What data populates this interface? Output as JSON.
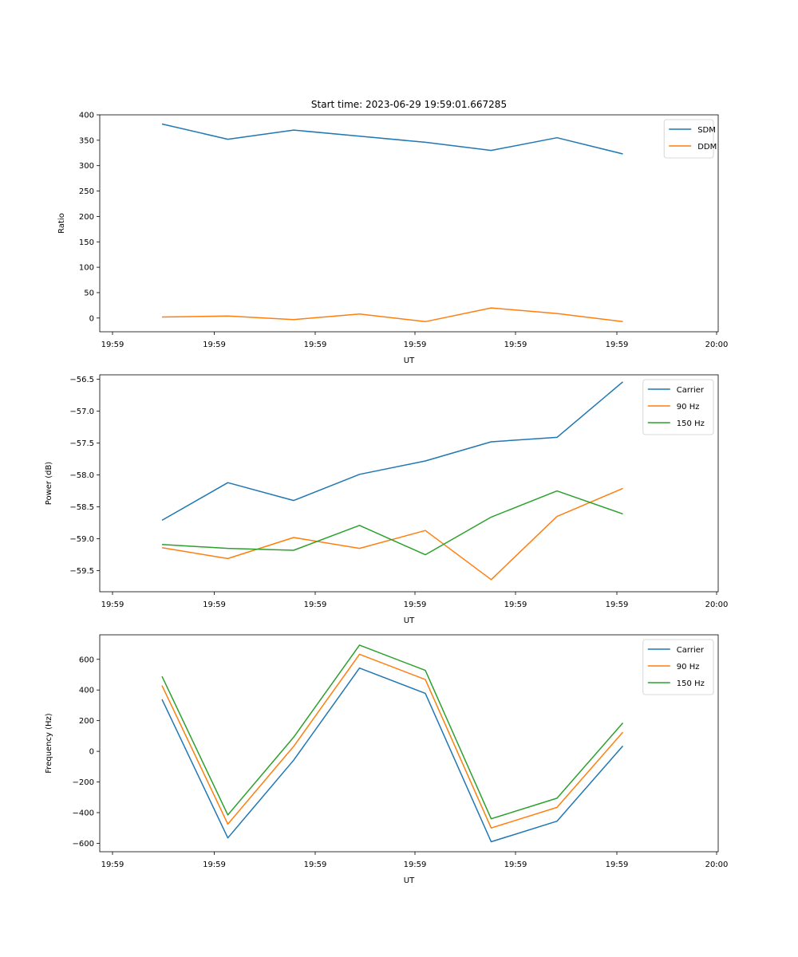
{
  "chart_data": [
    {
      "type": "line",
      "title": "Start time: 2023-06-29 19:59:01.667285",
      "xlabel": "UT",
      "ylabel": "Ratio",
      "ylim": [
        -27,
        400
      ],
      "yticks": [
        0,
        50,
        100,
        150,
        200,
        250,
        300,
        350,
        400
      ],
      "ytick_labels": [
        "0",
        "50",
        "100",
        "150",
        "200",
        "250",
        "300",
        "350",
        "400"
      ],
      "xtick_labels": [
        "19:59",
        "19:59",
        "19:59",
        "19:59",
        "19:59",
        "19:59",
        "20:00"
      ],
      "legend_position": "top-right",
      "grid": false,
      "series": [
        {
          "name": "SDM",
          "color": "#1f77b4",
          "values": [
            382,
            352,
            370,
            358,
            346,
            330,
            355,
            323
          ]
        },
        {
          "name": "DDM",
          "color": "#ff7f0e",
          "values": [
            2,
            4,
            -3,
            8,
            -7,
            20,
            9,
            -7
          ]
        }
      ]
    },
    {
      "type": "line",
      "title": "",
      "xlabel": "UT",
      "ylabel": "Power (dB)",
      "ylim": [
        -59.83,
        -56.43
      ],
      "yticks": [
        -59.5,
        -59.0,
        -58.5,
        -58.0,
        -57.5,
        -57.0,
        -56.5
      ],
      "ytick_labels": [
        "−59.5",
        "−59.0",
        "−58.5",
        "−58.0",
        "−57.5",
        "−57.0",
        "−56.5"
      ],
      "xtick_labels": [
        "19:59",
        "19:59",
        "19:59",
        "19:59",
        "19:59",
        "19:59",
        "20:00"
      ],
      "legend_position": "top-right",
      "grid": false,
      "series": [
        {
          "name": "Carrier",
          "color": "#1f77b4",
          "values": [
            -58.71,
            -58.12,
            -58.4,
            -57.99,
            -57.78,
            -57.48,
            -57.41,
            -56.54
          ]
        },
        {
          "name": "90 Hz",
          "color": "#ff7f0e",
          "values": [
            -59.14,
            -59.31,
            -58.98,
            -59.15,
            -58.87,
            -59.64,
            -58.65,
            -58.21
          ]
        },
        {
          "name": "150 Hz",
          "color": "#2ca02c",
          "values": [
            -59.09,
            -59.15,
            -59.18,
            -58.79,
            -59.25,
            -58.66,
            -58.25,
            -58.61
          ]
        }
      ]
    },
    {
      "type": "line",
      "title": "",
      "xlabel": "UT",
      "ylabel": "Frequency (Hz)",
      "ylim": [
        -655,
        760
      ],
      "yticks": [
        -600,
        -400,
        -200,
        0,
        200,
        400,
        600
      ],
      "ytick_labels": [
        "−600",
        "−400",
        "−200",
        "0",
        "200",
        "400",
        "600"
      ],
      "xtick_labels": [
        "19:59",
        "19:59",
        "19:59",
        "19:59",
        "19:59",
        "19:59",
        "20:00"
      ],
      "legend_position": "top-right",
      "grid": false,
      "series": [
        {
          "name": "Carrier",
          "color": "#1f77b4",
          "values": [
            339,
            -565,
            -58,
            543,
            378,
            -590,
            -456,
            35
          ]
        },
        {
          "name": "90 Hz",
          "color": "#ff7f0e",
          "values": [
            429,
            -475,
            32,
            633,
            468,
            -500,
            -366,
            125
          ]
        },
        {
          "name": "150 Hz",
          "color": "#2ca02c",
          "values": [
            489,
            -415,
            92,
            693,
            528,
            -440,
            -306,
            185
          ]
        }
      ]
    }
  ]
}
